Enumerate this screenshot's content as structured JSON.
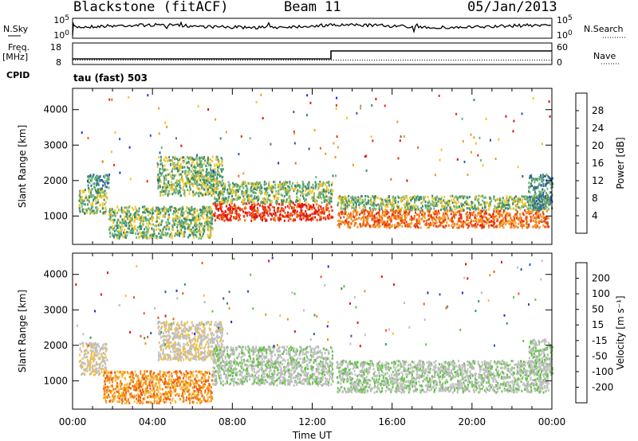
{
  "header": {
    "radar": "Blackstone (fitACF)",
    "beam": "Beam 11",
    "date": "05/Jan/2013"
  },
  "params": {
    "nsky_label": "N.Sky",
    "nsearch_label": "N.Search",
    "freq_label": "Freq.",
    "freq_unit": "[MHz]",
    "nave_label": "Nave",
    "cpid_label": "CPID",
    "cpid_text": "tau (fast) 503",
    "noise_ticks": [
      "10^5",
      "10^0"
    ],
    "noise_ticks_right": [
      "10^5",
      "10^0"
    ],
    "freq_ticks": [
      "18",
      "8"
    ],
    "nave_ticks": [
      "60",
      "0"
    ]
  },
  "colors": {
    "power": [
      "#2a2aee",
      "#2c5aa8",
      "#3c8a6a",
      "#6fb57a",
      "#f5c52a",
      "#f59a20",
      "#f06a14",
      "#e83010",
      "#e01010"
    ],
    "velocity": [
      "#e81010",
      "#f05a10",
      "#f5900f",
      "#f5c040",
      "#bfbfbf",
      "#bfbfbf",
      "#66c24a",
      "#3a9a55",
      "#2b5aa8",
      "#2a2acc"
    ]
  },
  "chart_data": [
    {
      "type": "heatmap",
      "name": "power",
      "ylabel": "Slant Range [km]",
      "ylim": [
        200,
        4600
      ],
      "xlim": [
        0,
        24
      ],
      "yticks": [
        "4000",
        "3000",
        "2000",
        "1000"
      ],
      "xticks": [
        "00:00",
        "04:00",
        "08:00",
        "12:00",
        "16:00",
        "20:00",
        "00:00"
      ],
      "colorbar": {
        "label": "Power [dB]",
        "ticks": [
          "28",
          "24",
          "20",
          "16",
          "12",
          "8",
          "4"
        ],
        "range": [
          0,
          30
        ]
      },
      "scatter_bands": [
        {
          "t": [
            0.3,
            1.7
          ],
          "r": [
            1100,
            1800
          ],
          "level": 3
        },
        {
          "t": [
            0.7,
            1.8
          ],
          "r": [
            1800,
            2200
          ],
          "level": 2
        },
        {
          "t": [
            1.8,
            7.0
          ],
          "r": [
            400,
            1300
          ],
          "level": 3
        },
        {
          "t": [
            4.2,
            7.5
          ],
          "r": [
            1600,
            2700
          ],
          "level": 3
        },
        {
          "t": [
            7.0,
            13.0
          ],
          "r": [
            900,
            1400
          ],
          "level": 7
        },
        {
          "t": [
            7.0,
            13.0
          ],
          "r": [
            1400,
            2000
          ],
          "level": 3
        },
        {
          "t": [
            13.2,
            23.8
          ],
          "r": [
            700,
            1200
          ],
          "level": 6
        },
        {
          "t": [
            13.2,
            23.8
          ],
          "r": [
            1200,
            1600
          ],
          "level": 3
        },
        {
          "t": [
            22.8,
            24.0
          ],
          "r": [
            1200,
            2200
          ],
          "level": 2
        }
      ]
    },
    {
      "type": "heatmap",
      "name": "velocity",
      "ylabel": "Slant Range [km]",
      "ylim": [
        200,
        4600
      ],
      "xlim": [
        0,
        24
      ],
      "yticks": [
        "4000",
        "3000",
        "2000",
        "1000"
      ],
      "xticks": [
        "00:00",
        "04:00",
        "08:00",
        "12:00",
        "16:00",
        "20:00",
        "00:00"
      ],
      "xlabel": "Time UT",
      "colorbar": {
        "label": "Velocity [m s⁻¹]",
        "ticks": [
          "200",
          "100",
          "50",
          "15",
          "-15",
          "-50",
          "-100",
          "-200"
        ],
        "range": [
          -250,
          250
        ]
      },
      "scatter_bands": [
        {
          "t": [
            0.3,
            1.7
          ],
          "r": [
            1200,
            2100
          ],
          "level": 4
        },
        {
          "t": [
            1.5,
            7.0
          ],
          "r": [
            400,
            1300
          ],
          "level": 2
        },
        {
          "t": [
            4.2,
            7.5
          ],
          "r": [
            1600,
            2700
          ],
          "level": 4
        },
        {
          "t": [
            7.0,
            13.0
          ],
          "r": [
            900,
            2000
          ],
          "level": 5
        },
        {
          "t": [
            13.2,
            23.8
          ],
          "r": [
            700,
            1600
          ],
          "level": 5
        },
        {
          "t": [
            22.8,
            24.0
          ],
          "r": [
            1200,
            2200
          ],
          "level": 5
        }
      ]
    }
  ]
}
